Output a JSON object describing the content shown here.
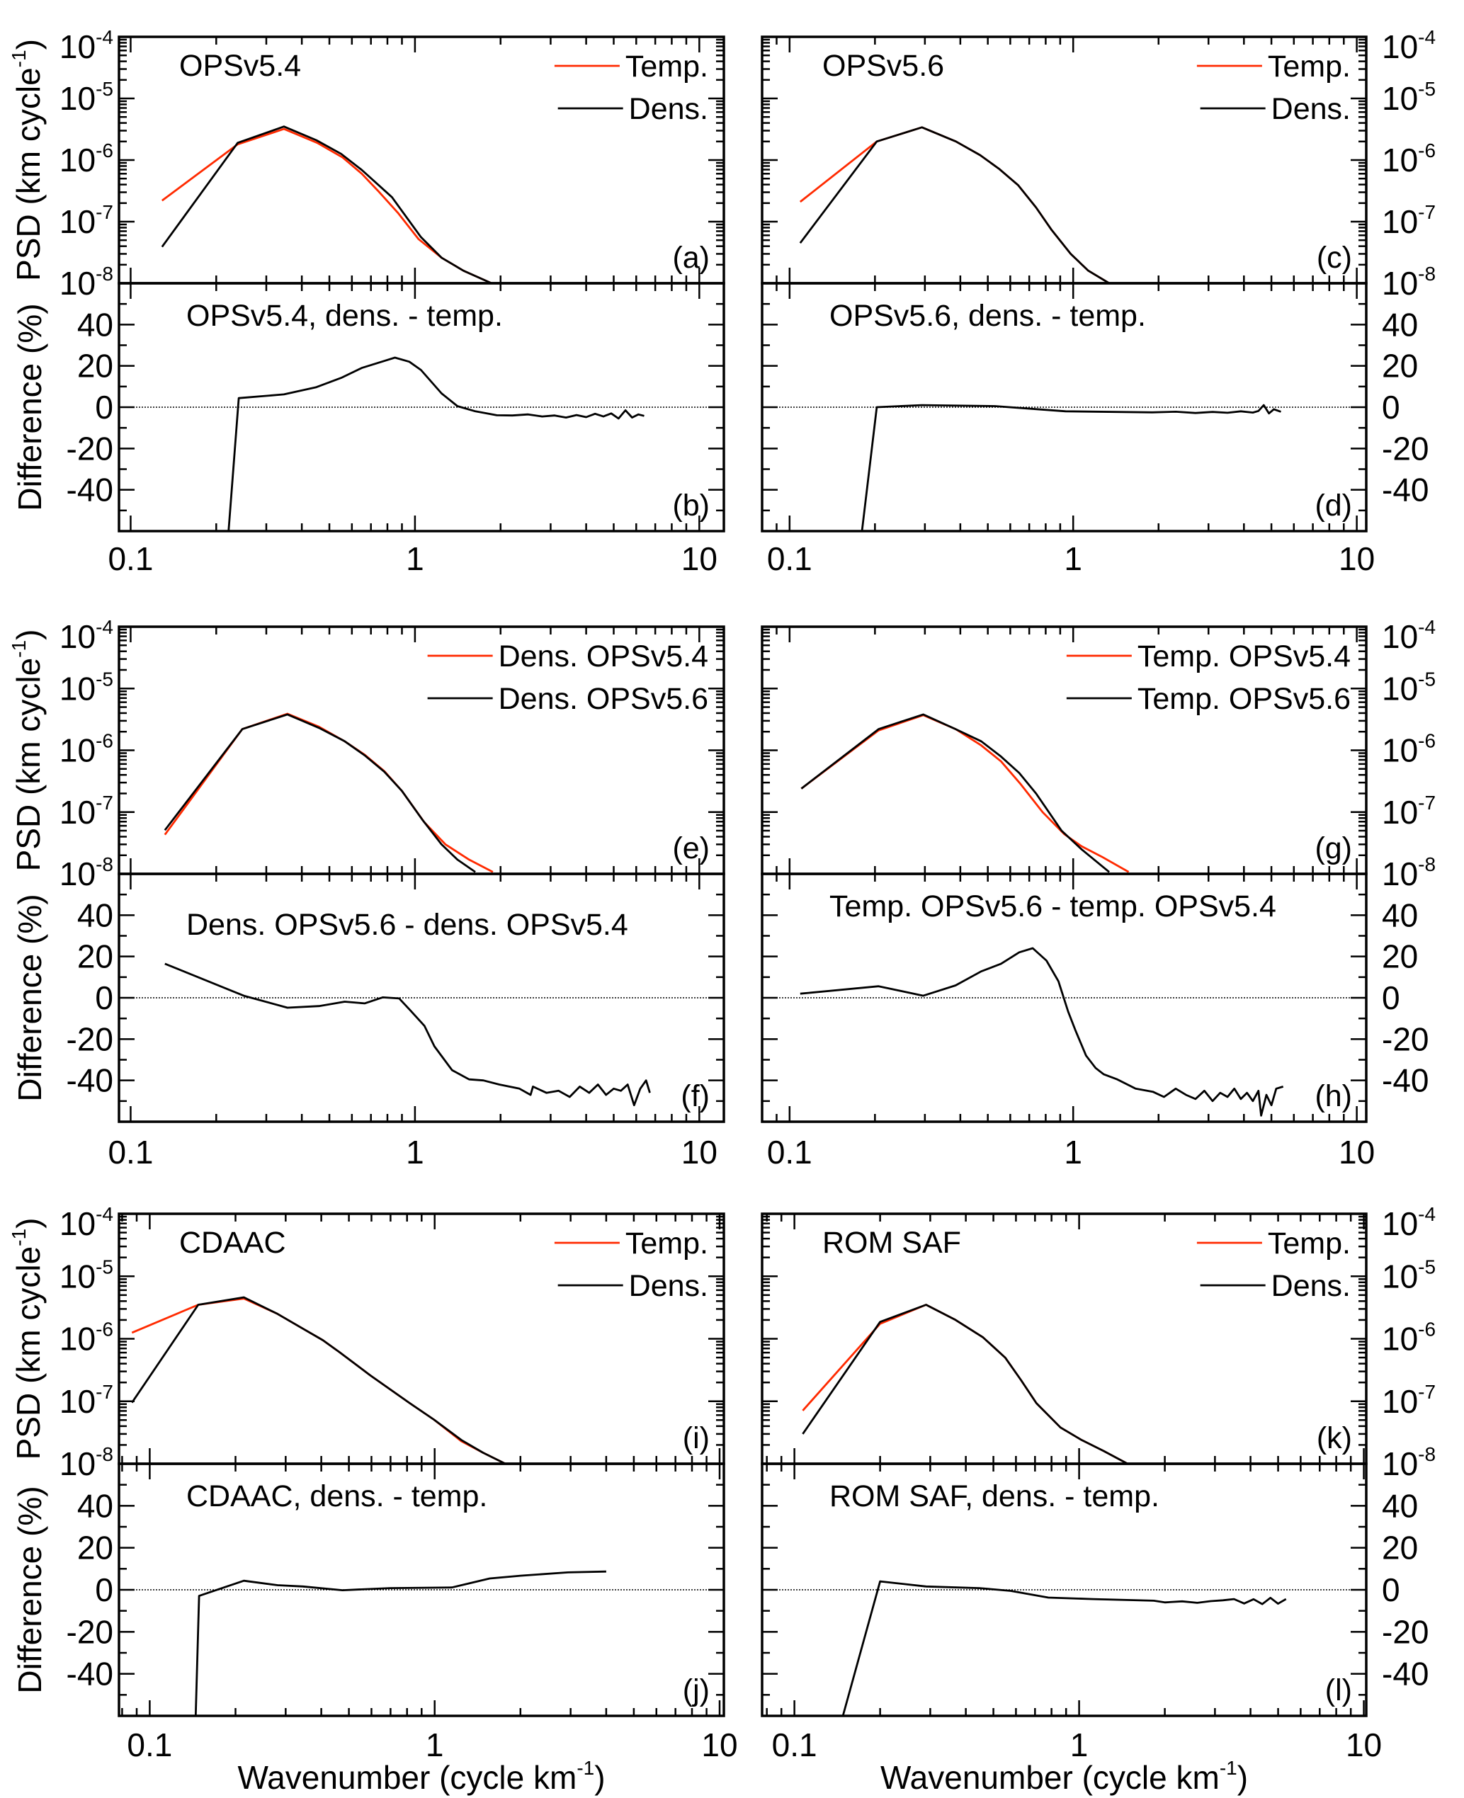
{
  "colors": {
    "temp_or_v54": "#ff2a00",
    "dens_or_v56": "#000000"
  },
  "axis_text": {
    "xlabel": {
      "text": "Wavenumber (cycle km",
      "sup": "-1",
      "tail": ")"
    },
    "ylabel_psd": {
      "text": "PSD (km cycle",
      "sup": "-1",
      "tail": ")"
    },
    "ylabel_diff": {
      "text": "Difference (%)"
    },
    "x_ticks": [
      "0.1",
      "1",
      "10"
    ],
    "psd_ticks": [
      {
        "base": "10",
        "exp": "-4"
      },
      {
        "base": "10",
        "exp": "-5"
      },
      {
        "base": "10",
        "exp": "-6"
      },
      {
        "base": "10",
        "exp": "-7"
      },
      {
        "base": "10",
        "exp": "-8"
      }
    ],
    "diff_ticks": [
      "40",
      "20",
      "0",
      "-20",
      "-40"
    ]
  },
  "chart_data": [
    {
      "id": "a",
      "letter": "(a)",
      "type": "line",
      "kind": "psd",
      "title": "OPSv5.4",
      "xscale": "log",
      "yscale": "log",
      "xlim": [
        0.091,
        12.2
      ],
      "ylim": [
        1e-08,
        0.0001
      ],
      "legend": "top-right",
      "series": [
        {
          "name": "Temp.",
          "color": "#ff2a00",
          "x": [
            0.129,
            0.238,
            0.346,
            0.453,
            0.557,
            0.65,
            0.74,
            0.87,
            1.03,
            1.24,
            1.48,
            1.86
          ],
          "y": [
            2.2e-07,
            1.8e-06,
            3.2e-06,
            1.9e-06,
            1.1e-06,
            6e-07,
            3.2e-07,
            1.4e-07,
            5.2e-08,
            2.6e-08,
            1.6e-08,
            1e-08
          ]
        },
        {
          "name": "Dens.",
          "color": "#000000",
          "x": [
            0.129,
            0.238,
            0.346,
            0.45,
            0.55,
            0.65,
            0.83,
            1.05,
            1.24,
            1.48,
            1.86
          ],
          "y": [
            3.9e-08,
            1.9e-06,
            3.5e-06,
            2.1e-06,
            1.26e-06,
            6.9e-07,
            2.5e-07,
            5.6e-08,
            2.6e-08,
            1.6e-08,
            1e-08
          ]
        }
      ]
    },
    {
      "id": "b",
      "letter": "(b)",
      "type": "line",
      "kind": "diff",
      "title": "OPSv5.4, dens. - temp.",
      "xscale": "log",
      "xlim": [
        0.091,
        12.2
      ],
      "ylim": [
        -60,
        60
      ],
      "zero_line": true,
      "series": [
        {
          "color": "#000000",
          "x": [
            0.221,
            0.24,
            0.346,
            0.45,
            0.55,
            0.65,
            0.85,
            0.955,
            1.05,
            1.24,
            1.41,
            1.63,
            1.94,
            2.2,
            2.5,
            2.8,
            3.1,
            3.4,
            3.7,
            4.0,
            4.3,
            4.6,
            4.9,
            5.2,
            5.5,
            5.8,
            6.1,
            6.4
          ],
          "y": [
            -60,
            4.4,
            6.2,
            9.7,
            14.2,
            19,
            24,
            22,
            18,
            6.7,
            0.5,
            -2,
            -3.9,
            -4,
            -3.5,
            -4.5,
            -4,
            -5,
            -3.8,
            -4.8,
            -3.2,
            -4.5,
            -3,
            -5.5,
            -1.5,
            -5,
            -3.5,
            -4.2
          ]
        }
      ]
    },
    {
      "id": "c",
      "letter": "(c)",
      "type": "line",
      "kind": "psd",
      "title": "OPSv5.6",
      "xscale": "log",
      "yscale": "log",
      "xlim": [
        0.08,
        10.8
      ],
      "ylim": [
        1e-08,
        0.0001
      ],
      "legend": "top-right",
      "series": [
        {
          "name": "Temp.",
          "color": "#ff2a00",
          "x": [
            0.109,
            0.203,
            0.293,
            0.386,
            0.47,
            0.55,
            0.64,
            0.74,
            0.84,
            0.98,
            1.13,
            1.34
          ],
          "y": [
            2.1e-07,
            2e-06,
            3.4e-06,
            2e-06,
            1.2e-06,
            7.1e-07,
            3.9e-07,
            1.7e-07,
            7.3e-08,
            3e-08,
            1.6e-08,
            1e-08
          ]
        },
        {
          "name": "Dens.",
          "color": "#000000",
          "x": [
            0.109,
            0.203,
            0.293,
            0.386,
            0.47,
            0.55,
            0.64,
            0.74,
            0.84,
            0.98,
            1.13,
            1.34
          ],
          "y": [
            4.5e-08,
            2e-06,
            3.4e-06,
            2e-06,
            1.2e-06,
            7.1e-07,
            3.9e-07,
            1.7e-07,
            7.3e-08,
            3e-08,
            1.6e-08,
            1e-08
          ]
        }
      ]
    },
    {
      "id": "d",
      "letter": "(d)",
      "type": "line",
      "kind": "diff",
      "title": "OPSv5.6, dens. - temp.",
      "xscale": "log",
      "xlim": [
        0.08,
        10.8
      ],
      "ylim": [
        -60,
        60
      ],
      "zero_line": true,
      "series": [
        {
          "color": "#000000",
          "x": [
            0.18,
            0.203,
            0.293,
            0.53,
            0.94,
            1.9,
            2.3,
            2.7,
            3.1,
            3.5,
            3.9,
            4.3,
            4.5,
            4.7,
            4.9,
            5.1,
            5.4
          ],
          "y": [
            -60,
            0,
            1,
            0.5,
            -2,
            -2.5,
            -2.2,
            -2.8,
            -2.3,
            -2.7,
            -2,
            -2.6,
            -1.8,
            1,
            -3,
            -1,
            -2.2
          ]
        }
      ]
    },
    {
      "id": "e",
      "letter": "(e)",
      "type": "line",
      "kind": "psd",
      "title": "",
      "xscale": "log",
      "yscale": "log",
      "xlim": [
        0.091,
        12.2
      ],
      "ylim": [
        1e-08,
        0.0001
      ],
      "legend": "top-right",
      "series": [
        {
          "name": "Dens. OPSv5.4",
          "color": "#ff2a00",
          "x": [
            0.132,
            0.247,
            0.356,
            0.46,
            0.566,
            0.665,
            0.78,
            0.9,
            1.08,
            1.28,
            1.55,
            1.88
          ],
          "y": [
            4.3e-08,
            2.2e-06,
            3.9e-06,
            2.4e-06,
            1.4e-06,
            8.5e-07,
            4.6e-07,
            2.2e-07,
            6.8e-08,
            3e-08,
            1.7e-08,
            1.07e-08
          ]
        },
        {
          "name": "Dens. OPSv5.6",
          "color": "#000000",
          "x": [
            0.132,
            0.247,
            0.356,
            0.46,
            0.566,
            0.665,
            0.78,
            0.9,
            1.06,
            1.24,
            1.41,
            1.63
          ],
          "y": [
            5.1e-08,
            2.2e-06,
            3.8e-06,
            2.3e-06,
            1.4e-06,
            8.3e-07,
            4.5e-07,
            2.2e-07,
            7.6e-08,
            3e-08,
            1.7e-08,
            1.07e-08
          ]
        }
      ]
    },
    {
      "id": "f",
      "letter": "(f)",
      "type": "line",
      "kind": "diff",
      "title": "Dens. OPSv5.6 - dens. OPSv5.4",
      "xscale": "log",
      "xlim": [
        0.091,
        12.2
      ],
      "ylim": [
        -60,
        60
      ],
      "zero_line": true,
      "series": [
        {
          "color": "#000000",
          "x": [
            0.132,
            0.25,
            0.356,
            0.46,
            0.566,
            0.665,
            0.77,
            0.88,
            0.96,
            1.08,
            1.17,
            1.35,
            1.55,
            1.74,
            1.98,
            2.33,
            2.55,
            2.6,
            2.9,
            3.2,
            3.5,
            3.8,
            4.1,
            4.4,
            4.7,
            5.0,
            5.3,
            5.6,
            5.9,
            6.2,
            6.5,
            6.7
          ],
          "y": [
            16.5,
            1,
            -4.8,
            -4,
            -1.9,
            -2.7,
            0.2,
            -0.3,
            -5.9,
            -13.6,
            -23.5,
            -35,
            -39.5,
            -40,
            -42,
            -44,
            -47,
            -43,
            -46,
            -45,
            -48,
            -43,
            -46,
            -42,
            -47,
            -44,
            -45,
            -42,
            -52,
            -44,
            -40,
            -46
          ]
        }
      ]
    },
    {
      "id": "g",
      "letter": "(g)",
      "type": "line",
      "kind": "psd",
      "title": "",
      "xscale": "log",
      "yscale": "log",
      "xlim": [
        0.08,
        10.8
      ],
      "ylim": [
        1e-08,
        0.0001
      ],
      "legend": "top-right",
      "series": [
        {
          "name": "Temp. OPSv5.4",
          "color": "#ff2a00",
          "x": [
            0.11,
            0.206,
            0.296,
            0.385,
            0.474,
            0.557,
            0.654,
            0.78,
            0.93,
            1.07,
            1.26,
            1.57
          ],
          "y": [
            2.4e-07,
            2.1e-06,
            3.7e-06,
            2.2e-06,
            1.2e-06,
            6.6e-07,
            2.8e-07,
            1e-07,
            4.4e-08,
            2.8e-08,
            1.9e-08,
            1.07e-08
          ]
        },
        {
          "name": "Temp. OPSv5.6",
          "color": "#000000",
          "x": [
            0.11,
            0.206,
            0.296,
            0.385,
            0.474,
            0.557,
            0.645,
            0.74,
            0.91,
            1.07,
            1.34
          ],
          "y": [
            2.4e-07,
            2.2e-06,
            3.8e-06,
            2.2e-06,
            1.4e-06,
            7.9e-07,
            4.3e-07,
            2e-07,
            5e-08,
            2.5e-08,
            1.07e-08
          ]
        }
      ]
    },
    {
      "id": "h",
      "letter": "(h)",
      "type": "line",
      "kind": "diff",
      "title": "Temp. OPSv5.6 - temp. OPSv5.4",
      "xscale": "log",
      "xlim": [
        0.08,
        10.8
      ],
      "ylim": [
        -60,
        60
      ],
      "zero_line": true,
      "series": [
        {
          "color": "#000000",
          "x": [
            0.109,
            0.206,
            0.296,
            0.385,
            0.474,
            0.557,
            0.645,
            0.72,
            0.805,
            0.887,
            0.96,
            1.02,
            1.11,
            1.2,
            1.28,
            1.43,
            1.66,
            1.91,
            2.09,
            2.3,
            2.5,
            2.7,
            2.9,
            3.1,
            3.3,
            3.5,
            3.7,
            3.9,
            4.1,
            4.3,
            4.5,
            4.6,
            4.8,
            5.0,
            5.2,
            5.5
          ],
          "y": [
            2,
            5.6,
            1,
            6,
            12.8,
            16.5,
            22,
            24,
            18,
            8,
            -6.7,
            -16,
            -28,
            -34,
            -37,
            -39.5,
            -44,
            -45.5,
            -48,
            -44,
            -47,
            -49,
            -45,
            -50,
            -46,
            -48,
            -44,
            -49,
            -46,
            -50,
            -45,
            -57,
            -47,
            -52,
            -44,
            -43
          ]
        }
      ]
    },
    {
      "id": "i",
      "letter": "(i)",
      "type": "line",
      "kind": "psd",
      "title": "CDAAC",
      "xscale": "log",
      "yscale": "log",
      "xlim": [
        0.078,
        10.35
      ],
      "ylim": [
        1e-08,
        0.0001
      ],
      "legend": "top-right",
      "series": [
        {
          "name": "Temp.",
          "color": "#ff2a00",
          "x": [
            0.0866,
            0.148,
            0.214,
            0.281,
            0.345,
            0.405,
            0.461,
            0.594,
            0.818,
            0.994,
            1.24,
            1.48,
            1.77
          ],
          "y": [
            1.25e-06,
            3.5e-06,
            4.4e-06,
            2.5e-06,
            1.45e-06,
            9.5e-07,
            6.2e-07,
            2.6e-07,
            9.3e-08,
            5.1e-08,
            2.3e-08,
            1.5e-08,
            1e-08
          ]
        },
        {
          "name": "Dens.",
          "color": "#000000",
          "x": [
            0.0866,
            0.148,
            0.214,
            0.281,
            0.345,
            0.405,
            0.461,
            0.594,
            0.818,
            0.994,
            1.24,
            1.48,
            1.77
          ],
          "y": [
            9.5e-08,
            3.5e-06,
            4.6e-06,
            2.5e-06,
            1.45e-06,
            9.5e-07,
            6.2e-07,
            2.6e-07,
            9.3e-08,
            5.1e-08,
            2.4e-08,
            1.5e-08,
            1e-08
          ]
        }
      ]
    },
    {
      "id": "j",
      "letter": "(j)",
      "type": "line",
      "kind": "diff",
      "title": "CDAAC, dens. - temp.",
      "xscale": "log",
      "xlim": [
        0.078,
        10.35
      ],
      "ylim": [
        -60,
        60
      ],
      "zero_line": true,
      "series": [
        {
          "color": "#000000",
          "x": [
            0.145,
            0.149,
            0.214,
            0.281,
            0.345,
            0.475,
            0.697,
            1.15,
            1.26,
            1.56,
            2.0,
            2.94,
            4.0
          ],
          "y": [
            -60,
            -2.9,
            4.3,
            2.2,
            1.6,
            -0.2,
            0.8,
            1.1,
            2.4,
            5.4,
            6.7,
            8.3,
            8.7
          ]
        }
      ]
    },
    {
      "id": "k",
      "letter": "(k)",
      "type": "line",
      "kind": "psd",
      "title": "ROM SAF",
      "xscale": "log",
      "yscale": "log",
      "xlim": [
        0.077,
        10.2
      ],
      "ylim": [
        1e-08,
        0.0001
      ],
      "legend": "top-right",
      "series": [
        {
          "name": "Temp.",
          "color": "#ff2a00",
          "x": [
            0.107,
            0.2,
            0.29,
            0.368,
            0.46,
            0.55,
            0.624,
            0.708,
            0.86,
            1.02,
            1.22,
            1.48
          ],
          "y": [
            7.1e-08,
            1.74e-06,
            3.5e-06,
            2e-06,
            1.05e-06,
            5e-07,
            2.2e-07,
            9.3e-08,
            3.8e-08,
            2.4e-08,
            1.6e-08,
            1e-08
          ]
        },
        {
          "name": "Dens.",
          "color": "#000000",
          "x": [
            0.107,
            0.2,
            0.29,
            0.368,
            0.46,
            0.55,
            0.624,
            0.708,
            0.86,
            1.02,
            1.22,
            1.48
          ],
          "y": [
            3e-08,
            1.86e-06,
            3.5e-06,
            2e-06,
            1.05e-06,
            5e-07,
            2.2e-07,
            9.3e-08,
            3.8e-08,
            2.4e-08,
            1.6e-08,
            1e-08
          ]
        }
      ]
    },
    {
      "id": "l",
      "letter": "(l)",
      "type": "line",
      "kind": "diff",
      "title": "ROM SAF, dens. - temp.",
      "xscale": "log",
      "xlim": [
        0.077,
        10.2
      ],
      "ylim": [
        -60,
        60
      ],
      "zero_line": true,
      "series": [
        {
          "color": "#000000",
          "x": [
            0.148,
            0.2,
            0.29,
            0.446,
            0.575,
            0.78,
            1.12,
            1.83,
            2.0,
            2.3,
            2.6,
            2.9,
            3.2,
            3.5,
            3.8,
            4.1,
            4.4,
            4.7,
            5.0,
            5.33
          ],
          "y": [
            -60,
            4,
            1.6,
            0.8,
            -0.5,
            -3.7,
            -4.4,
            -5.2,
            -6,
            -5.5,
            -6.2,
            -5.4,
            -5,
            -4.4,
            -6.5,
            -4.5,
            -6.8,
            -3.8,
            -6.6,
            -4.4
          ]
        }
      ]
    }
  ]
}
